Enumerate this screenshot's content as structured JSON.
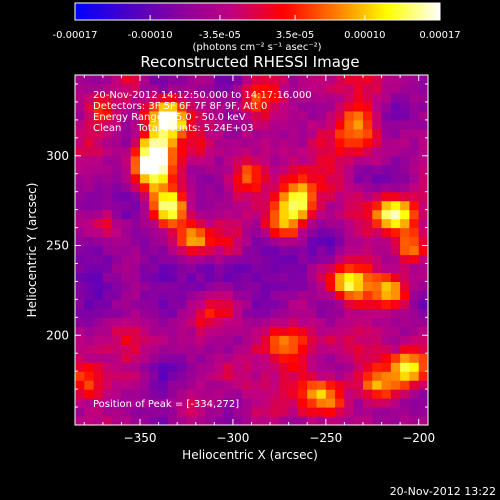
{
  "colorbar": {
    "tick_labels": [
      "-0.00017",
      "-0.00010",
      "-3.5e-05",
      "3.5e-05",
      "0.00010",
      "0.00017"
    ],
    "ticks": [
      -0.00017,
      -0.0001,
      -3.5e-05,
      3.5e-05,
      0.0001,
      0.00017
    ],
    "units": "(photons cm⁻² s⁻¹ asec⁻²)",
    "range": [
      -0.00017,
      0.00017
    ],
    "colors": [
      "#0000ff",
      "#4800c8",
      "#8a00a0",
      "#c00080",
      "#ff0000",
      "#ff7a00",
      "#ffff00",
      "#ffffff"
    ]
  },
  "chart_data": {
    "type": "heatmap",
    "title": "Reconstructed RHESSI Image",
    "xlabel": "Heliocentric X (arcsec)",
    "ylabel": "Heliocentric Y (arcsec)",
    "xlim": [
      -385,
      -195
    ],
    "ylim": [
      150,
      345
    ],
    "xticks": [
      -350,
      -300,
      -250,
      -200
    ],
    "xtick_labels": [
      "−350",
      "−300",
      "−250",
      "−200"
    ],
    "yticks": [
      200,
      250,
      300
    ],
    "ytick_labels": [
      "200",
      "250",
      "300"
    ],
    "annotations": [
      "20-Nov-2012 14:12:50.000 to 14:17:16.000",
      "Detectors: 3F 5F 6F 7F 8F 9F, Att 0",
      "Energy Range: 25.0 - 50.0 keV",
      "Clean     Total counts: 5.24E+03"
    ],
    "peak_label": "Position of Peak = [-334,272]",
    "peak": [
      -334,
      272
    ],
    "sources": [
      {
        "x": -335,
        "y": 320,
        "value": 0.00016
      },
      {
        "x": -342,
        "y": 303,
        "value": 0.00017
      },
      {
        "x": -334,
        "y": 272,
        "value": 0.00017
      },
      {
        "x": -345,
        "y": 292,
        "value": 0.00013
      },
      {
        "x": -372,
        "y": 325,
        "value": 9e-05
      },
      {
        "x": -321,
        "y": 255,
        "value": 0.0001
      },
      {
        "x": -292,
        "y": 288,
        "value": 9e-05
      },
      {
        "x": -265,
        "y": 275,
        "value": 0.00015
      },
      {
        "x": -272,
        "y": 262,
        "value": 0.00012
      },
      {
        "x": -213,
        "y": 268,
        "value": 0.00014
      },
      {
        "x": -203,
        "y": 250,
        "value": 0.0001
      },
      {
        "x": -215,
        "y": 225,
        "value": 0.00013
      },
      {
        "x": -238,
        "y": 228,
        "value": 0.00011
      },
      {
        "x": -205,
        "y": 182,
        "value": 0.0001
      },
      {
        "x": -221,
        "y": 172,
        "value": 8e-05
      },
      {
        "x": -252,
        "y": 168,
        "value": 7e-05
      },
      {
        "x": -270,
        "y": 195,
        "value": 7e-05
      },
      {
        "x": -315,
        "y": 212,
        "value": 5e-05
      },
      {
        "x": -378,
        "y": 175,
        "value": 6e-05
      },
      {
        "x": -370,
        "y": 262,
        "value": 5e-05
      },
      {
        "x": -285,
        "y": 330,
        "value": 4e-05
      },
      {
        "x": -235,
        "y": 318,
        "value": 6e-05
      }
    ]
  },
  "footer": {
    "timestamp": "20-Nov-2012 13:22"
  }
}
